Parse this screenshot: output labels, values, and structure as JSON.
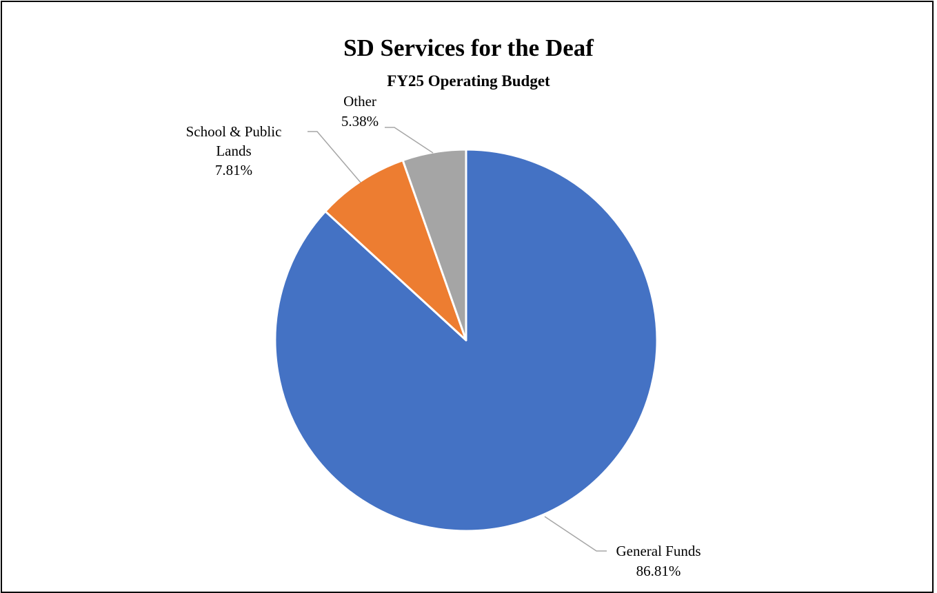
{
  "chart_data": {
    "type": "pie",
    "title": "SD Services for the Deaf",
    "subtitle": "FY25 Operating Budget",
    "slices": [
      {
        "name": "General Funds",
        "value": 86.81,
        "label": "86.81%",
        "color": "#4472C4"
      },
      {
        "name": "School & Public Lands",
        "value": 7.81,
        "label": "7.81%",
        "color": "#ED7D31"
      },
      {
        "name": "Other",
        "value": 5.38,
        "label": "5.38%",
        "color": "#A5A5A5"
      }
    ]
  }
}
